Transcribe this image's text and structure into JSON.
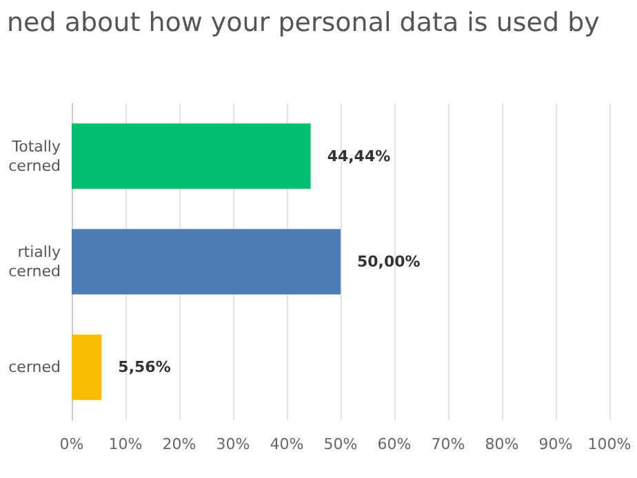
{
  "chart_data": {
    "type": "bar",
    "orientation": "horizontal",
    "title": "ned about how your personal data is used by",
    "categories": [
      "Totally\ncerned",
      "rtially\ncerned",
      "cerned"
    ],
    "values": [
      44.44,
      50,
      5.56
    ],
    "colors": [
      "#00bf6f",
      "#507cb6",
      "#f9be00"
    ],
    "value_labels": [
      "44,44%",
      "50,00%",
      "5,56%"
    ],
    "xlim": [
      0,
      100
    ],
    "xticks": [
      {
        "value": 0,
        "label": "0%"
      },
      {
        "value": 10,
        "label": "10%"
      },
      {
        "value": 20,
        "label": "20%"
      },
      {
        "value": 30,
        "label": "30%"
      },
      {
        "value": 40,
        "label": "40%"
      },
      {
        "value": 50,
        "label": "50%"
      },
      {
        "value": 60,
        "label": "60%"
      },
      {
        "value": 70,
        "label": "70%"
      },
      {
        "value": 80,
        "label": "80%"
      },
      {
        "value": 90,
        "label": "90%"
      },
      {
        "value": 100,
        "label": "100%"
      }
    ],
    "grid": "x"
  }
}
